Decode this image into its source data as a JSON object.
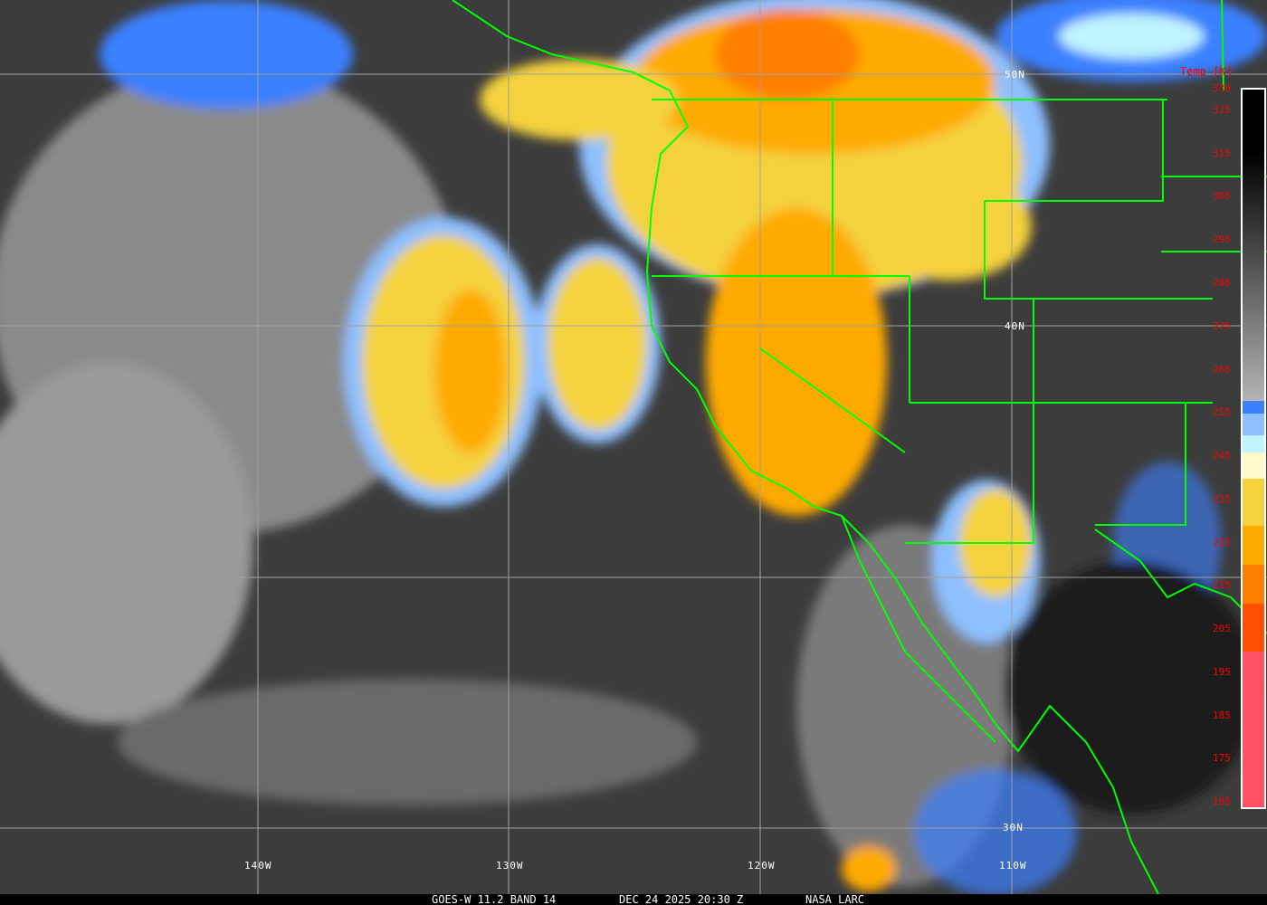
{
  "caption": {
    "satellite": "GOES-W 11.2 BAND 14",
    "datetime": "DEC 24 2025 20:30 Z",
    "source": "NASA LARC"
  },
  "longitude_labels": [
    "140W",
    "130W",
    "120W",
    "110W"
  ],
  "latitude_labels": [
    "50N",
    "40N",
    "30N"
  ],
  "colorbar": {
    "title": "Temp [K]",
    "ticks": [
      "330",
      "325",
      "315",
      "305",
      "295",
      "285",
      "275",
      "265",
      "255",
      "245",
      "235",
      "225",
      "215",
      "205",
      "195",
      "185",
      "175",
      "165"
    ],
    "segments": [
      {
        "from": 330,
        "to": 258,
        "color": "gradient black-to-gray"
      },
      {
        "from": 258,
        "to": 255,
        "color": "#3a80ff"
      },
      {
        "from": 255,
        "to": 250,
        "color": "#8ec0ff"
      },
      {
        "from": 250,
        "to": 246,
        "color": "#c0f4ff"
      },
      {
        "from": 246,
        "to": 240,
        "color": "#fffac8"
      },
      {
        "from": 240,
        "to": 229,
        "color": "#f4d23c"
      },
      {
        "from": 229,
        "to": 220,
        "color": "#ffaa00"
      },
      {
        "from": 220,
        "to": 211,
        "color": "#ff8000"
      },
      {
        "from": 211,
        "to": 200,
        "color": "#ff5000"
      },
      {
        "from": 200,
        "to": 164,
        "color": "#ff5064"
      }
    ]
  },
  "colors": {
    "boundaries": "#00ff00",
    "grid": "#a0a0a0",
    "tick_text": "#ff0000"
  }
}
